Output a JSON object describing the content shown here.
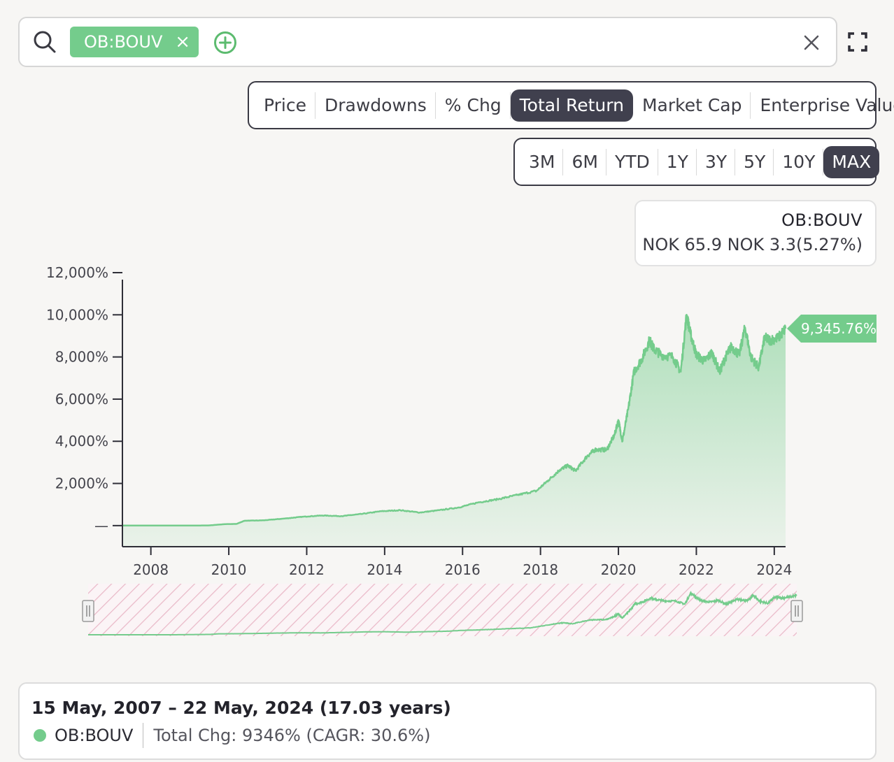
{
  "search": {
    "ticker_chip": "OB:BOUV",
    "chip_close": "×"
  },
  "metric_tabs": [
    {
      "label": "Price",
      "active": false
    },
    {
      "label": "Drawdowns",
      "active": false
    },
    {
      "label": "% Chg",
      "active": false
    },
    {
      "label": "Total Return",
      "active": true
    },
    {
      "label": "Market Cap",
      "active": false
    },
    {
      "label": "Enterprise Value",
      "active": false
    }
  ],
  "range_tabs": [
    {
      "label": "3M",
      "active": false
    },
    {
      "label": "6M",
      "active": false
    },
    {
      "label": "YTD",
      "active": false
    },
    {
      "label": "1Y",
      "active": false
    },
    {
      "label": "3Y",
      "active": false
    },
    {
      "label": "5Y",
      "active": false
    },
    {
      "label": "10Y",
      "active": false
    },
    {
      "label": "MAX",
      "active": true
    }
  ],
  "tooltip": {
    "ticker": "OB:BOUV",
    "values": "NOK 65.9  NOK 3.3(5.27%)"
  },
  "colors": {
    "series": "#74cc8c",
    "active_tab": "#40404e",
    "navigator_hatch": "#eab9c8"
  },
  "chart_data": {
    "type": "area",
    "y_ticks": [
      "—",
      "2,000%",
      "4,000%",
      "6,000%",
      "8,000%",
      "10,000%",
      "12,000%"
    ],
    "y_tick_values": [
      0,
      2000,
      4000,
      6000,
      8000,
      10000,
      12000
    ],
    "x_ticks": [
      "2008",
      "2010",
      "2012",
      "2014",
      "2016",
      "2018",
      "2020",
      "2022",
      "2024"
    ],
    "x_tick_values": [
      2008.1,
      2010.1,
      2012.1,
      2014.1,
      2016.1,
      2018.1,
      2020.1,
      2022.1,
      2024.1
    ],
    "xlim": [
      2007.37,
      2024.39
    ],
    "ylim": [
      -1000,
      12000
    ],
    "last_value_label": "9,345.76%",
    "series": [
      {
        "name": "OB:BOUV",
        "x": [
          2007.37,
          2008.0,
          2009.0,
          2009.6,
          2010.0,
          2010.3,
          2010.5,
          2011.0,
          2011.5,
          2012.0,
          2012.5,
          2013.0,
          2013.5,
          2014.0,
          2014.5,
          2015.0,
          2015.5,
          2016.0,
          2016.5,
          2017.0,
          2017.5,
          2018.0,
          2018.3,
          2018.6,
          2018.8,
          2019.0,
          2019.3,
          2019.5,
          2019.8,
          2020.0,
          2020.1,
          2020.2,
          2020.35,
          2020.5,
          2020.7,
          2020.9,
          2021.0,
          2021.2,
          2021.5,
          2021.7,
          2021.85,
          2021.95,
          2022.1,
          2022.3,
          2022.5,
          2022.7,
          2022.85,
          2023.0,
          2023.2,
          2023.35,
          2023.5,
          2023.7,
          2023.85,
          2024.0,
          2024.2,
          2024.39
        ],
        "values": [
          0,
          0,
          0,
          10,
          70,
          80,
          230,
          250,
          330,
          420,
          480,
          450,
          550,
          680,
          730,
          620,
          730,
          860,
          1100,
          1250,
          1450,
          1650,
          2150,
          2650,
          2850,
          2600,
          3300,
          3600,
          3600,
          4300,
          5000,
          4000,
          5500,
          7300,
          7900,
          8800,
          8400,
          8100,
          8000,
          7300,
          10000,
          9100,
          8100,
          7800,
          8200,
          7300,
          8000,
          8500,
          8100,
          9400,
          8000,
          7500,
          8900,
          8800,
          8900,
          9346
        ]
      }
    ],
    "title": "",
    "xlabel": "",
    "ylabel": "",
    "grid": false,
    "legend": "bottom"
  },
  "summary": {
    "date_range": "15 May, 2007 – 22 May, 2024 (17.03 years)",
    "ticker": "OB:BOUV",
    "stats": "Total Chg: 9346% (CAGR: 30.6%)"
  }
}
